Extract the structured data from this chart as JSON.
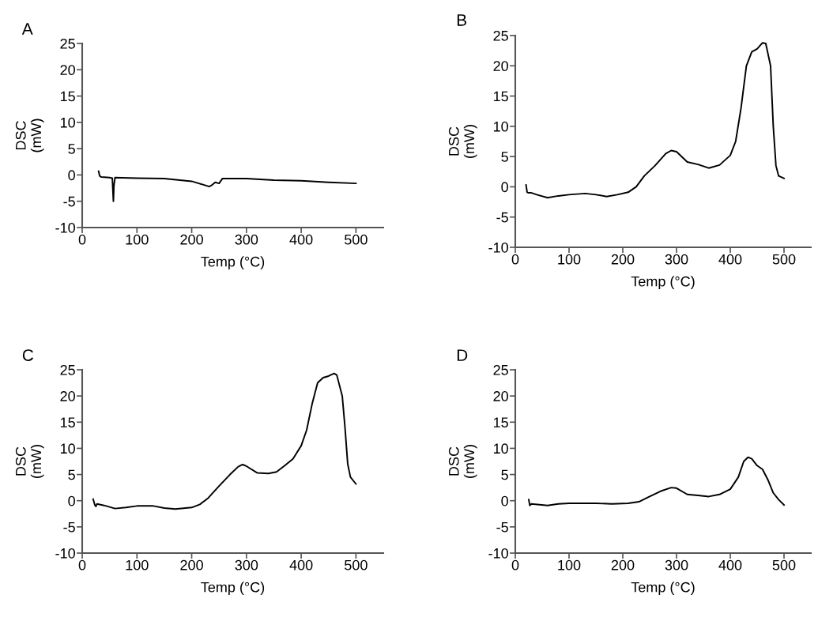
{
  "chart_data": [
    {
      "type": "line",
      "title": "A",
      "xlabel": "Temp (°C)",
      "ylabel": "DSC\n(mW)",
      "xlim": [
        0,
        550
      ],
      "xticks": [
        0,
        100,
        200,
        300,
        400,
        500
      ],
      "ylim": [
        -10,
        25
      ],
      "yticks": [
        -10,
        -5,
        0,
        5,
        10,
        15,
        20,
        25
      ],
      "grid": false,
      "legend": false,
      "series": [
        {
          "color": "#000000",
          "x": [
            30,
            32,
            35,
            50,
            55,
            57,
            58,
            60,
            100,
            150,
            200,
            232,
            236,
            243,
            250,
            256,
            300,
            350,
            400,
            450,
            500
          ],
          "values": [
            0.7,
            -0.2,
            -0.4,
            -0.5,
            -0.6,
            -5.0,
            -2.0,
            -0.5,
            -0.6,
            -0.7,
            -1.2,
            -2.2,
            -2.0,
            -1.4,
            -1.6,
            -0.7,
            -0.7,
            -1.0,
            -1.1,
            -1.4,
            -1.6
          ]
        }
      ]
    },
    {
      "type": "line",
      "title": "B",
      "xlabel": "Temp (°C)",
      "ylabel": "DSC\n(mW)",
      "xlim": [
        0,
        550
      ],
      "xticks": [
        0,
        100,
        200,
        300,
        400,
        500
      ],
      "ylim": [
        -10,
        25
      ],
      "yticks": [
        -10,
        -5,
        0,
        5,
        10,
        15,
        20,
        25
      ],
      "grid": false,
      "legend": false,
      "series": [
        {
          "color": "#000000",
          "x": [
            20,
            22,
            25,
            30,
            40,
            60,
            80,
            100,
            130,
            150,
            170,
            190,
            210,
            225,
            240,
            260,
            280,
            290,
            300,
            320,
            340,
            360,
            380,
            400,
            410,
            420,
            430,
            440,
            450,
            460,
            466,
            475,
            480,
            485,
            490,
            500
          ],
          "values": [
            0.3,
            -0.9,
            -1.0,
            -1.0,
            -1.3,
            -1.8,
            -1.5,
            -1.3,
            -1.1,
            -1.3,
            -1.6,
            -1.3,
            -0.9,
            0.0,
            1.8,
            3.5,
            5.5,
            6.0,
            5.8,
            4.1,
            3.7,
            3.1,
            3.6,
            5.2,
            7.5,
            13.0,
            20.0,
            22.3,
            22.8,
            23.8,
            23.7,
            20.0,
            10.0,
            3.5,
            1.8,
            1.4
          ]
        }
      ]
    },
    {
      "type": "line",
      "title": "C",
      "xlabel": "Temp (°C)",
      "ylabel": "DSC\n(mW)",
      "xlim": [
        0,
        550
      ],
      "xticks": [
        0,
        100,
        200,
        300,
        400,
        500
      ],
      "ylim": [
        -10,
        25
      ],
      "yticks": [
        -10,
        -5,
        0,
        5,
        10,
        15,
        20,
        25
      ],
      "grid": false,
      "legend": false,
      "series": [
        {
          "color": "#000000",
          "x": [
            20,
            23,
            25,
            27,
            40,
            60,
            80,
            100,
            130,
            150,
            170,
            200,
            215,
            230,
            250,
            270,
            285,
            293,
            300,
            320,
            340,
            355,
            370,
            385,
            400,
            410,
            420,
            430,
            440,
            450,
            460,
            465,
            475,
            480,
            485,
            490,
            500
          ],
          "values": [
            0.3,
            -0.8,
            -1.1,
            -0.6,
            -0.9,
            -1.5,
            -1.3,
            -1.0,
            -1.0,
            -1.4,
            -1.6,
            -1.3,
            -0.7,
            0.5,
            2.8,
            5.0,
            6.5,
            6.9,
            6.6,
            5.3,
            5.2,
            5.5,
            6.7,
            8.0,
            10.5,
            13.5,
            18.5,
            22.5,
            23.5,
            23.8,
            24.3,
            24.0,
            20.0,
            14.0,
            7.0,
            4.5,
            3.2
          ]
        }
      ]
    },
    {
      "type": "line",
      "title": "D",
      "xlabel": "Temp (°C)",
      "ylabel": "DSC\n(mW)",
      "xlim": [
        0,
        550
      ],
      "xticks": [
        0,
        100,
        200,
        300,
        400,
        500
      ],
      "ylim": [
        -10,
        25
      ],
      "yticks": [
        -10,
        -5,
        0,
        5,
        10,
        15,
        20,
        25
      ],
      "grid": false,
      "legend": false,
      "series": [
        {
          "color": "#000000",
          "x": [
            25,
            27,
            30,
            60,
            80,
            100,
            150,
            180,
            210,
            230,
            250,
            270,
            290,
            300,
            320,
            340,
            360,
            380,
            400,
            415,
            425,
            433,
            440,
            450,
            460,
            470,
            480,
            490,
            500
          ],
          "values": [
            0.2,
            -0.9,
            -0.6,
            -0.9,
            -0.6,
            -0.5,
            -0.5,
            -0.6,
            -0.5,
            -0.2,
            0.8,
            1.8,
            2.5,
            2.4,
            1.2,
            1.0,
            0.8,
            1.2,
            2.2,
            4.5,
            7.5,
            8.3,
            8.0,
            6.7,
            6.0,
            4.0,
            1.5,
            0.2,
            -0.8
          ]
        }
      ]
    }
  ]
}
